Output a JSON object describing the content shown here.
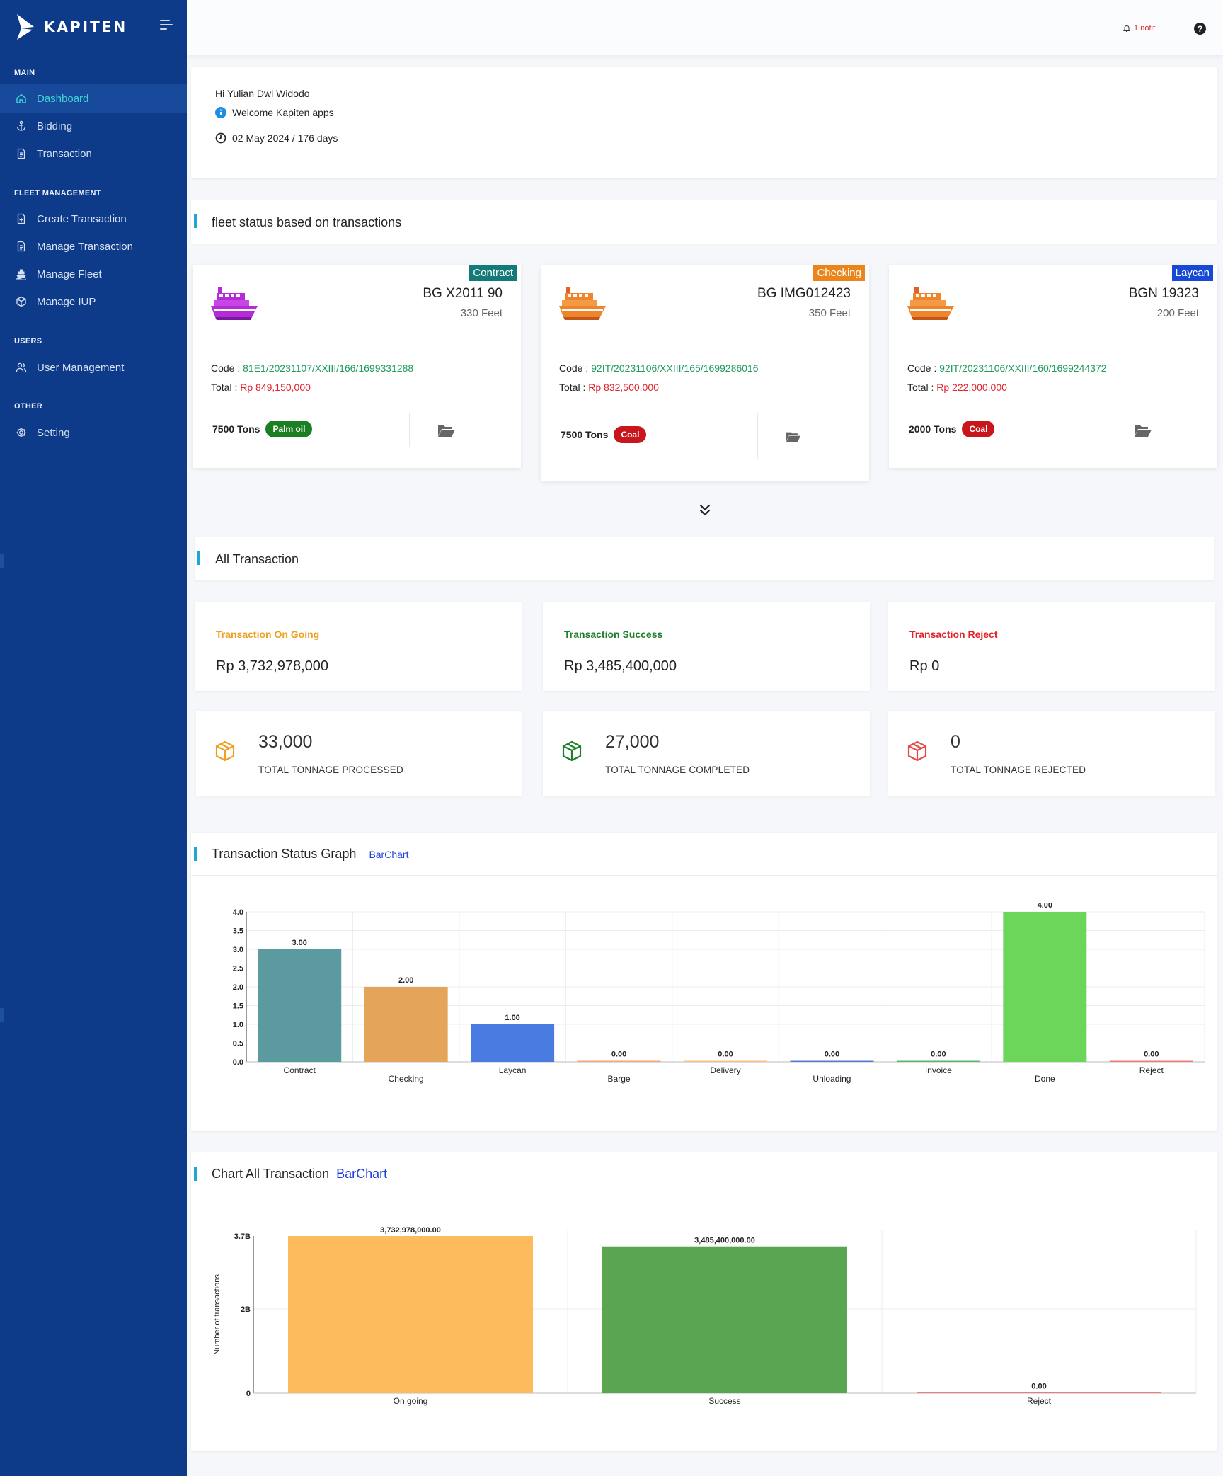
{
  "sidebar": {
    "brand": "KAPITEN",
    "sections": {
      "main": "MAIN",
      "fleet": "FLEET MANAGEMENT",
      "users": "USERS",
      "other": "OTHER"
    },
    "items": {
      "dashboard": "Dashboard",
      "bidding": "Bidding",
      "transaction": "Transaction",
      "create_transaction": "Create Transaction",
      "manage_transaction": "Manage Transaction",
      "manage_fleet": "Manage Fleet",
      "manage_iup": "Manage IUP",
      "user_management": "User Management",
      "setting": "Setting"
    }
  },
  "topbar": {
    "notif": "1 notif",
    "help": "?"
  },
  "welcome": {
    "greeting": "Hi Yulian Dwi Widodo",
    "message": "Welcome Kapiten apps",
    "date": "02 May 2024 / 176 days"
  },
  "fleet": {
    "title": "fleet status based on transactions",
    "cards": [
      {
        "status": "Contract",
        "status_color": "#137a78",
        "vessel": "BG X2011 90",
        "size": "330 Feet",
        "code_label": "Code : ",
        "code": "81E1/20231107/XXIII/166/1699331288",
        "total_label": "Total : ",
        "total": "Rp 849,150,000",
        "tons": "7500 Tons",
        "cargo": "Palm oil",
        "cargo_color": "#1a7f23",
        "ship_color": "#b52bd8"
      },
      {
        "status": "Checking",
        "status_color": "#e9851a",
        "vessel": "BG IMG012423",
        "size": "350 Feet",
        "code_label": "Code : ",
        "code": "92IT/20231106/XXIII/165/1699286016",
        "total_label": "Total : ",
        "total": "Rp 832,500,000",
        "tons": "7500 Tons",
        "cargo": "Coal",
        "cargo_color": "#c8161d",
        "ship_color": "#f0842a"
      },
      {
        "status": "Laycan",
        "status_color": "#1849d6",
        "vessel": "BGN 19323",
        "size": "200 Feet",
        "code_label": "Code : ",
        "code": "92IT/20231106/XXIII/160/1699244372",
        "total_label": "Total : ",
        "total": "Rp 222,000,000",
        "tons": "2000 Tons",
        "cargo": "Coal",
        "cargo_color": "#c8161d",
        "ship_color": "#f0842a"
      }
    ]
  },
  "all_transaction": {
    "title": "All Transaction",
    "stats": [
      {
        "label": "Transaction On Going",
        "value": "Rp 3,732,978,000",
        "color": "#f0a020"
      },
      {
        "label": "Transaction Success",
        "value": "Rp 3,485,400,000",
        "color": "#1f7f2a"
      },
      {
        "label": "Transaction Reject",
        "value": "Rp 0",
        "color": "#e0232a"
      }
    ],
    "tonnage": [
      {
        "value": "33,000",
        "label": "TOTAL TONNAGE PROCESSED",
        "color": "#f0a020"
      },
      {
        "value": "27,000",
        "label": "TOTAL TONNAGE COMPLETED",
        "color": "#1f7f2a"
      },
      {
        "value": "0",
        "label": "TOTAL TONNAGE REJECTED",
        "color": "#e84a4a"
      }
    ]
  },
  "status_graph": {
    "title": "Transaction Status Graph",
    "link": "BarChart"
  },
  "all_chart": {
    "title": "Chart All Transaction",
    "link": "BarChart"
  },
  "chart_data": [
    {
      "type": "bar",
      "categories": [
        "Contract",
        "Checking",
        "Laycan",
        "Barge",
        "Delivery",
        "Unloading",
        "Invoice",
        "Done",
        "Reject"
      ],
      "values": [
        3,
        2,
        1,
        0,
        0,
        0,
        0,
        4,
        0
      ],
      "data_labels": [
        "3.00",
        "2.00",
        "1.00",
        "0.00",
        "0.00",
        "0.00",
        "0.00",
        "4.00",
        "0.00"
      ],
      "colors": [
        "#5b9ba0",
        "#e4a55a",
        "#4a7be0",
        "#f5a77a",
        "#f7c08a",
        "#5a7ad0",
        "#5bb56a",
        "#6cd65a",
        "#f07a7a"
      ],
      "yticks": [
        "0.0",
        "0.5",
        "1.0",
        "1.5",
        "2.0",
        "2.5",
        "3.0",
        "3.5",
        "4.0"
      ],
      "ylim": [
        0,
        4
      ],
      "grid": true,
      "xlabel": "",
      "ylabel": ""
    },
    {
      "type": "bar",
      "categories": [
        "On going",
        "Success",
        "Reject"
      ],
      "values": [
        3732978000,
        3485400000,
        0
      ],
      "data_labels": [
        "3,732,978,000.00",
        "3,485,400,000.00",
        "0.00"
      ],
      "colors": [
        "#fdbb5e",
        "#5aa552",
        "#f07a7a"
      ],
      "yticks": [
        {
          "value": 0,
          "label": "0"
        },
        {
          "value": 2000000000,
          "label": "2B"
        },
        {
          "value": 3732978000,
          "label": "3.7B"
        }
      ],
      "ylim": [
        0,
        3732978000
      ],
      "grid": true,
      "xlabel": "",
      "ylabel": "Number of transactions"
    }
  ]
}
